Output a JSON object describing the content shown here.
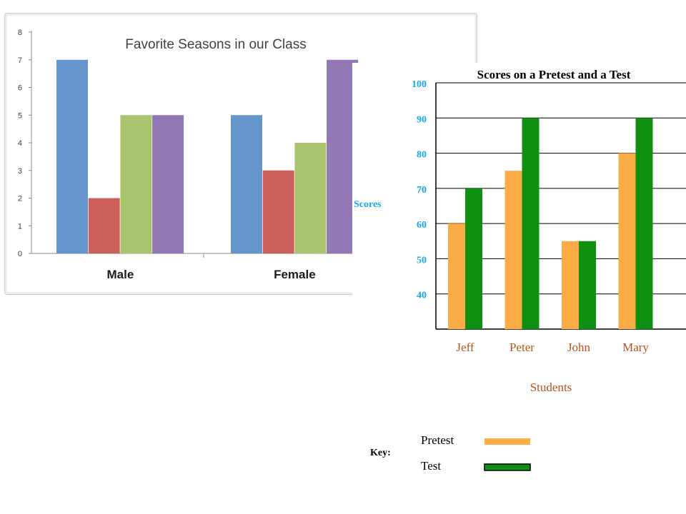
{
  "colors": {
    "spring": "#6495cd",
    "summer": "#cd5f5a",
    "fall": "#a9c46c",
    "winter": "#9279b5",
    "pretest": "#fbac45",
    "test": "#109010",
    "axis_label_blue": "#1aa7e8",
    "student_brown": "#b8531a"
  },
  "chart_data": [
    {
      "type": "bar",
      "title": "Favorite Seasons in our Class",
      "categories": [
        "Male",
        "Female"
      ],
      "series": [
        {
          "values": [
            7,
            5
          ],
          "color": "#6495cd"
        },
        {
          "values": [
            2,
            3
          ],
          "color": "#cd5f5a"
        },
        {
          "values": [
            5,
            4
          ],
          "color": "#a9c46c"
        },
        {
          "values": [
            5,
            7
          ],
          "color": "#9279b5"
        }
      ],
      "ylim": [
        0,
        8
      ],
      "yticks": [
        "0",
        "1",
        "2",
        "3",
        "4",
        "5",
        "6",
        "7",
        "8"
      ],
      "grid": false,
      "legend": "none"
    },
    {
      "type": "bar",
      "title": "Scores on a Pretest and a Test",
      "categories": [
        "Jeff",
        "Peter",
        "John",
        "Mary"
      ],
      "series": [
        {
          "name": "Pretest",
          "values": [
            60,
            75,
            55,
            80
          ],
          "color": "#fbac45"
        },
        {
          "name": "Test",
          "values": [
            70,
            90,
            55,
            90
          ],
          "color": "#109010"
        }
      ],
      "xlabel": "Students",
      "ylabel": "Scores",
      "ylim": [
        30,
        100
      ],
      "yticks": [
        "40",
        "50",
        "60",
        "70",
        "80",
        "90",
        "100"
      ],
      "grid": true,
      "legend": "bottom",
      "legend_label": "Key:"
    }
  ]
}
